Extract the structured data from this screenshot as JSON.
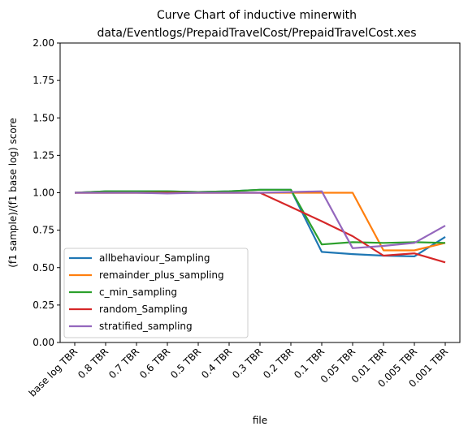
{
  "chart_data": {
    "type": "line",
    "title_lines": [
      "Curve Chart of inductive minerwith",
      "data/Eventlogs/PrepaidTravelCost/PrepaidTravelCost.xes"
    ],
    "xlabel": "file",
    "ylabel": "(f1 sample)/(f1 base log) score",
    "categories": [
      "base log TBR",
      "0.8 TBR",
      "0.7 TBR",
      "0.6 TBR",
      "0.5 TBR",
      "0.4 TBR",
      "0.3 TBR",
      "0.2 TBR",
      "0.1 TBR",
      "0.05 TBR",
      "0.01 TBR",
      "0.005 TBR",
      "0.001 TBR"
    ],
    "ylim": [
      0,
      2
    ],
    "yticks": [
      "0.00",
      "0.25",
      "0.50",
      "0.75",
      "1.00",
      "1.25",
      "1.50",
      "1.75",
      "2.00"
    ],
    "grid": false,
    "legend_position": "lower-left",
    "series": [
      {
        "name": "allbehaviour_Sampling",
        "color": "#1f77b4",
        "values": [
          1.0,
          1.01,
          1.01,
          1.01,
          1.005,
          1.01,
          1.02,
          1.02,
          0.605,
          0.59,
          0.58,
          0.575,
          0.705
        ]
      },
      {
        "name": "remainder_plus_sampling",
        "color": "#ff7f0e",
        "values": [
          1.0,
          1.0,
          1.0,
          1.0,
          1.0,
          1.0,
          1.0,
          1.0,
          1.0,
          1.0,
          0.615,
          0.615,
          0.665
        ]
      },
      {
        "name": "c_min_sampling",
        "color": "#2ca02c",
        "values": [
          1.0,
          1.01,
          1.01,
          1.01,
          1.005,
          1.01,
          1.02,
          1.02,
          0.655,
          0.67,
          0.665,
          0.67,
          0.665
        ]
      },
      {
        "name": "random_Sampling",
        "color": "#d62728",
        "values": [
          1.0,
          1.0,
          1.0,
          1.0,
          1.0,
          1.0,
          1.0,
          0.905,
          0.81,
          0.71,
          0.58,
          0.595,
          0.535
        ]
      },
      {
        "name": "stratified_sampling",
        "color": "#9467bd",
        "values": [
          1.0,
          1.0,
          1.0,
          0.995,
          1.0,
          1.0,
          1.0,
          1.005,
          1.01,
          0.63,
          0.645,
          0.665,
          0.78
        ]
      }
    ]
  }
}
